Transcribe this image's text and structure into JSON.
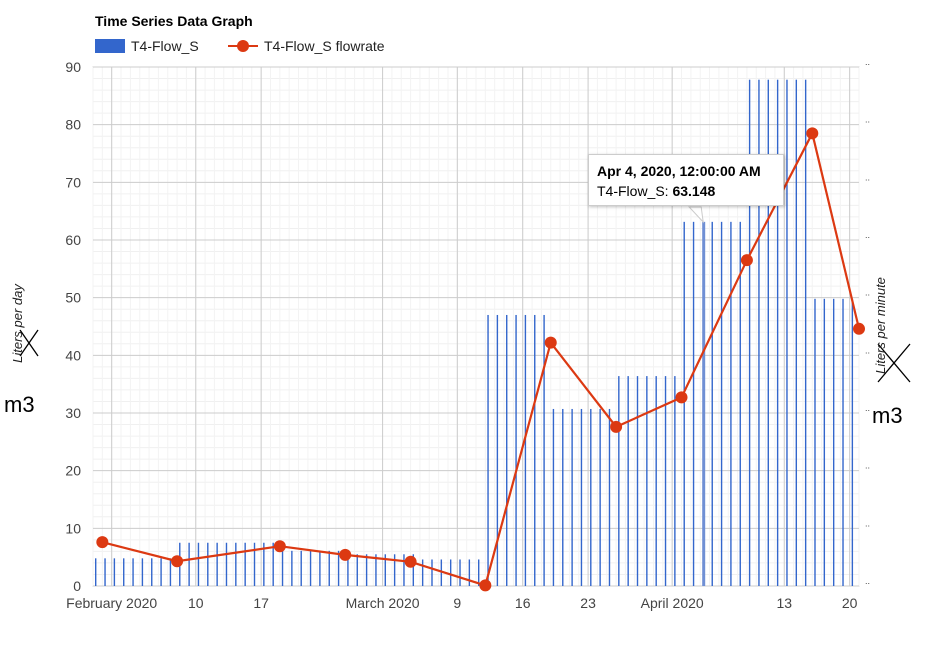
{
  "chart_data": {
    "type": "bar",
    "title": "Time Series Data Graph",
    "ylabel_left": "Liters per day",
    "ylabel_left_replacement": "m3",
    "ylabel_right": "Liters per minute",
    "ylabel_right_replacement": "m3",
    "ylim": [
      0,
      90
    ],
    "y_ticks": [
      0,
      10,
      20,
      30,
      40,
      50,
      60,
      70,
      80,
      90
    ],
    "x_range": [
      "2020-01-30",
      "2020-04-21"
    ],
    "x_ticks": [
      {
        "date": "2020-02-01",
        "label": "February 2020"
      },
      {
        "date": "2020-02-10",
        "label": "10"
      },
      {
        "date": "2020-02-17",
        "label": "17"
      },
      {
        "date": "2020-03-01",
        "label": "March 2020"
      },
      {
        "date": "2020-03-09",
        "label": "9"
      },
      {
        "date": "2020-03-16",
        "label": "16"
      },
      {
        "date": "2020-03-23",
        "label": "23"
      },
      {
        "date": "2020-04-01",
        "label": "April 2020"
      },
      {
        "date": "2020-04-13",
        "label": "13"
      },
      {
        "date": "2020-04-20",
        "label": "20"
      }
    ],
    "bar_segments": [
      {
        "start": "2020-01-30",
        "end": "2020-02-08",
        "value": 4.8
      },
      {
        "start": "2020-02-08",
        "end": "2020-02-20",
        "value": 7.5
      },
      {
        "start": "2020-02-20",
        "end": "2020-02-27",
        "value": 6.1
      },
      {
        "start": "2020-02-27",
        "end": "2020-03-05",
        "value": 5.5
      },
      {
        "start": "2020-03-05",
        "end": "2020-03-12",
        "value": 4.6
      },
      {
        "start": "2020-03-12",
        "end": "2020-03-19",
        "value": 47
      },
      {
        "start": "2020-03-19",
        "end": "2020-03-26",
        "value": 30.7
      },
      {
        "start": "2020-03-26",
        "end": "2020-04-02",
        "value": 36.4
      },
      {
        "start": "2020-04-02",
        "end": "2020-04-09",
        "value": 63.148
      },
      {
        "start": "2020-04-09",
        "end": "2020-04-16",
        "value": 87.8
      },
      {
        "start": "2020-04-16",
        "end": "2020-04-21",
        "value": 49.8
      }
    ],
    "highlight_bar_date": "2020-04-04",
    "series": [
      {
        "name": "T4-Flow_S",
        "type": "bar",
        "color": "#3366cc"
      },
      {
        "name": "T4-Flow_S flowrate",
        "type": "line",
        "color": "#dc3912",
        "points": [
          {
            "x": "2020-01-31",
            "y": 7.6
          },
          {
            "x": "2020-02-08",
            "y": 4.3
          },
          {
            "x": "2020-02-19",
            "y": 6.9
          },
          {
            "x": "2020-02-26",
            "y": 5.4
          },
          {
            "x": "2020-03-04",
            "y": 4.2
          },
          {
            "x": "2020-03-12",
            "y": 0.1
          },
          {
            "x": "2020-03-19",
            "y": 42.2
          },
          {
            "x": "2020-03-26",
            "y": 27.6
          },
          {
            "x": "2020-04-02",
            "y": 32.7
          },
          {
            "x": "2020-04-09",
            "y": 56.5
          },
          {
            "x": "2020-04-16",
            "y": 78.5
          },
          {
            "x": "2020-04-21",
            "y": 44.6
          }
        ]
      }
    ],
    "grid": true,
    "legend_position": "top-left",
    "tooltip": {
      "date": "Apr 4, 2020, 12:00:00 AM",
      "series": "T4-Flow_S:",
      "value": "63.148"
    }
  }
}
